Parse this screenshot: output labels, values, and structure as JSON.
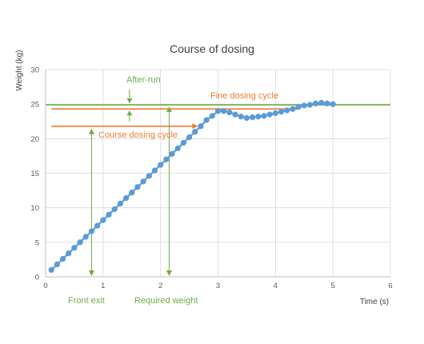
{
  "chart_data": {
    "type": "scatter",
    "title": "Course of dosing",
    "xlabel": "Time (s)",
    "ylabel": "Weight (kg)",
    "xlim": [
      0,
      6
    ],
    "ylim": [
      0,
      30
    ],
    "xticks": [
      0,
      1,
      2,
      3,
      4,
      5,
      6
    ],
    "yticks": [
      0,
      5,
      10,
      15,
      20,
      25,
      30
    ],
    "grid": true,
    "series": [
      {
        "color": "#5b9bd5",
        "points": [
          [
            0.1,
            1.0
          ],
          [
            0.2,
            1.8
          ],
          [
            0.3,
            2.6
          ],
          [
            0.4,
            3.4
          ],
          [
            0.5,
            4.2
          ],
          [
            0.6,
            5.0
          ],
          [
            0.7,
            5.8
          ],
          [
            0.8,
            6.6
          ],
          [
            0.9,
            7.4
          ],
          [
            1.0,
            8.2
          ],
          [
            1.1,
            9.0
          ],
          [
            1.2,
            9.8
          ],
          [
            1.3,
            10.6
          ],
          [
            1.4,
            11.4
          ],
          [
            1.5,
            12.2
          ],
          [
            1.6,
            13.0
          ],
          [
            1.7,
            13.8
          ],
          [
            1.8,
            14.6
          ],
          [
            1.9,
            15.4
          ],
          [
            2.0,
            16.2
          ],
          [
            2.1,
            17.0
          ],
          [
            2.2,
            17.8
          ],
          [
            2.3,
            18.6
          ],
          [
            2.4,
            19.4
          ],
          [
            2.5,
            20.2
          ],
          [
            2.6,
            21.0
          ],
          [
            2.7,
            21.8
          ],
          [
            2.8,
            22.7
          ],
          [
            2.9,
            23.3
          ],
          [
            3.0,
            24.0
          ],
          [
            3.1,
            24.0
          ],
          [
            3.2,
            23.8
          ],
          [
            3.3,
            23.5
          ],
          [
            3.4,
            23.2
          ],
          [
            3.5,
            23.0
          ],
          [
            3.6,
            23.1
          ],
          [
            3.7,
            23.2
          ],
          [
            3.8,
            23.3
          ],
          [
            3.9,
            23.5
          ],
          [
            4.0,
            23.7
          ],
          [
            4.1,
            23.9
          ],
          [
            4.2,
            24.1
          ],
          [
            4.3,
            24.3
          ],
          [
            4.4,
            24.6
          ],
          [
            4.5,
            24.8
          ],
          [
            4.6,
            24.9
          ],
          [
            4.7,
            25.1
          ],
          [
            4.8,
            25.2
          ],
          [
            4.9,
            25.1
          ],
          [
            5.0,
            25.0
          ]
        ]
      }
    ],
    "lines": {
      "target_weight": {
        "y": 24.9,
        "color": "#70ad47"
      },
      "fine_threshold": {
        "y": 24.3,
        "x": [
          0.1,
          4.4
        ],
        "color": "#ed7d31"
      },
      "course_threshold": {
        "y": 21.8,
        "x": [
          0.1,
          2.65
        ],
        "color": "#ed7d31"
      }
    },
    "annotations": [
      {
        "id": "after_run",
        "text": "After-run",
        "color": "#70ad47"
      },
      {
        "id": "fine",
        "text": "Fine dosing cycle",
        "color": "#ed7d31"
      },
      {
        "id": "course",
        "text": "Course dosing cycle",
        "color": "#ed7d31"
      },
      {
        "id": "front_exit",
        "text": "Front exit",
        "color": "#70ad47"
      },
      {
        "id": "required",
        "text": "Required weight",
        "color": "#70ad47"
      }
    ]
  }
}
